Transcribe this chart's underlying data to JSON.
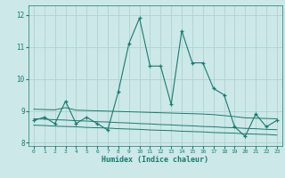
{
  "xlabel": "Humidex (Indice chaleur)",
  "ylabel": "",
  "background_color": "#cce8e8",
  "grid_color": "#aacece",
  "line_color": "#1a7a6e",
  "x_values": [
    0,
    1,
    2,
    3,
    4,
    5,
    6,
    7,
    8,
    9,
    10,
    11,
    12,
    13,
    14,
    15,
    16,
    17,
    18,
    19,
    20,
    21,
    22,
    23
  ],
  "main_line": [
    8.7,
    8.8,
    8.6,
    9.3,
    8.6,
    8.8,
    8.6,
    8.4,
    9.6,
    11.1,
    11.9,
    10.4,
    10.4,
    9.2,
    11.5,
    10.5,
    10.5,
    9.7,
    9.5,
    8.5,
    8.2,
    8.9,
    8.5,
    8.7
  ],
  "flat_line1": [
    8.75,
    8.74,
    8.72,
    8.71,
    8.69,
    8.68,
    8.66,
    8.65,
    8.63,
    8.62,
    8.6,
    8.59,
    8.57,
    8.56,
    8.54,
    8.53,
    8.51,
    8.5,
    8.48,
    8.47,
    8.45,
    8.44,
    8.42,
    8.41
  ],
  "flat_line2": [
    8.55,
    8.54,
    8.52,
    8.51,
    8.5,
    8.48,
    8.47,
    8.46,
    8.44,
    8.43,
    8.42,
    8.4,
    8.39,
    8.38,
    8.36,
    8.35,
    8.34,
    8.32,
    8.31,
    8.3,
    8.28,
    8.27,
    8.26,
    8.24
  ],
  "flat_line3": [
    9.05,
    9.04,
    9.03,
    9.1,
    9.02,
    9.01,
    9.0,
    8.99,
    8.98,
    8.97,
    8.96,
    8.95,
    8.94,
    8.93,
    8.92,
    8.91,
    8.9,
    8.88,
    8.85,
    8.82,
    8.78,
    8.77,
    8.76,
    8.75
  ],
  "ylim": [
    7.9,
    12.3
  ],
  "xlim": [
    -0.5,
    23.5
  ],
  "yticks": [
    8,
    9,
    10,
    11,
    12
  ],
  "xticks": [
    0,
    1,
    2,
    3,
    4,
    5,
    6,
    7,
    8,
    9,
    10,
    11,
    12,
    13,
    14,
    15,
    16,
    17,
    18,
    19,
    20,
    21,
    22,
    23
  ]
}
